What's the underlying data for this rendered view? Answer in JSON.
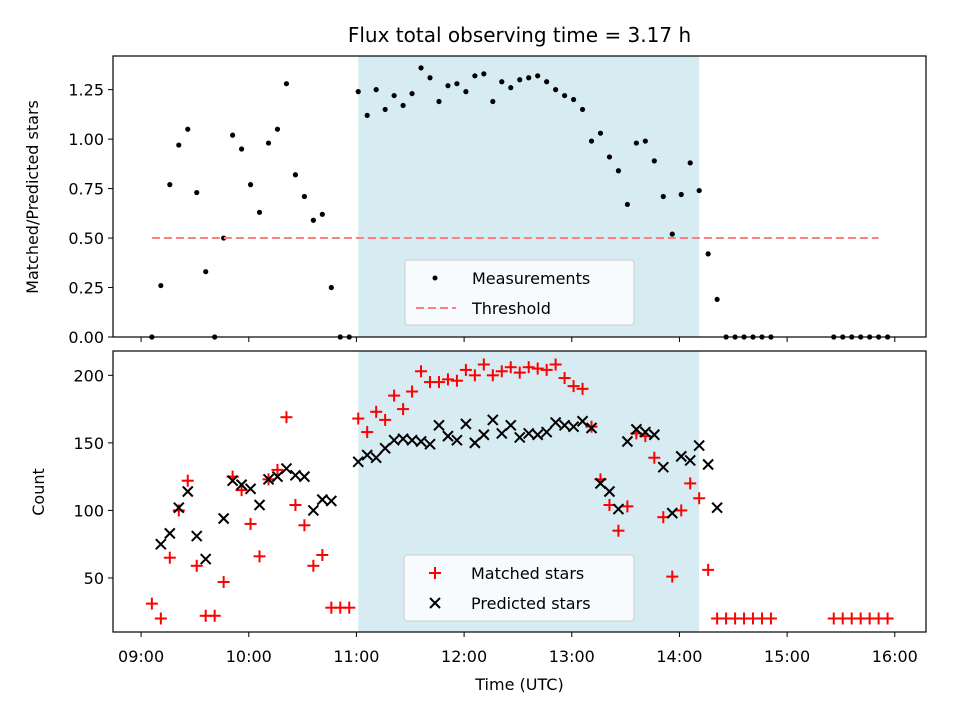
{
  "colors": {
    "measurements": "#000000",
    "threshold": "#ff7f7f",
    "matched": "#ff0000",
    "predicted": "#000000",
    "shade": "#add8e6"
  },
  "chart_data": [
    {
      "type": "scatter",
      "title": "Flux total observing time = 3.17 h",
      "xlabel": "",
      "ylabel": "Matched/Predicted stars",
      "xlim": [
        "09:00",
        "16:00"
      ],
      "ylim": [
        0,
        1.42
      ],
      "x_ticks": [
        "09:00",
        "10:00",
        "11:00",
        "12:00",
        "13:00",
        "14:00",
        "15:00",
        "16:00"
      ],
      "y_ticks": [
        "0.00",
        "0.25",
        "0.50",
        "0.75",
        "1.00",
        "1.25"
      ],
      "shaded_span": [
        "11:01",
        "14:11"
      ],
      "series": [
        {
          "name": "Measurements",
          "marker": "dot",
          "x": [
            "09:06",
            "09:11",
            "09:16",
            "09:21",
            "09:26",
            "09:31",
            "09:36",
            "09:41",
            "09:46",
            "09:51",
            "09:56",
            "10:01",
            "10:06",
            "10:11",
            "10:16",
            "10:21",
            "10:26",
            "10:31",
            "10:36",
            "10:41",
            "10:46",
            "10:51",
            "10:56",
            "11:01",
            "11:06",
            "11:11",
            "11:16",
            "11:21",
            "11:26",
            "11:31",
            "11:36",
            "11:41",
            "11:46",
            "11:51",
            "11:56",
            "12:01",
            "12:06",
            "12:11",
            "12:16",
            "12:21",
            "12:26",
            "12:31",
            "12:36",
            "12:41",
            "12:46",
            "12:51",
            "12:56",
            "13:01",
            "13:06",
            "13:11",
            "13:16",
            "13:21",
            "13:26",
            "13:31",
            "13:36",
            "13:41",
            "13:46",
            "13:51",
            "13:56",
            "14:01",
            "14:06",
            "14:11",
            "14:16",
            "14:21",
            "14:26",
            "14:31",
            "14:36",
            "14:41",
            "14:46",
            "14:51",
            "15:26",
            "15:31",
            "15:36",
            "15:41",
            "15:46",
            "15:51",
            "15:56"
          ],
          "y": [
            0.0,
            0.26,
            0.77,
            0.97,
            1.05,
            0.73,
            0.33,
            0.0,
            0.5,
            1.02,
            0.95,
            0.77,
            0.63,
            0.98,
            1.05,
            1.28,
            0.82,
            0.71,
            0.59,
            0.62,
            0.25,
            0.0,
            0.0,
            1.24,
            1.12,
            1.25,
            1.15,
            1.22,
            1.17,
            1.23,
            1.36,
            1.31,
            1.19,
            1.27,
            1.28,
            1.24,
            1.32,
            1.33,
            1.19,
            1.29,
            1.26,
            1.3,
            1.31,
            1.32,
            1.29,
            1.25,
            1.22,
            1.2,
            1.15,
            0.99,
            1.03,
            0.91,
            0.84,
            0.67,
            0.98,
            0.99,
            0.89,
            0.71,
            0.52,
            0.72,
            0.88,
            0.74,
            0.42,
            0.19,
            0.0,
            0.0,
            0.0,
            0.0,
            0.0,
            0.0,
            0.0,
            0.0,
            0.0,
            0.0,
            0.0,
            0.0,
            0.0
          ]
        },
        {
          "name": "Threshold",
          "marker": "dashed-line",
          "x": [
            "09:06",
            "15:51"
          ],
          "y": [
            0.5,
            0.5
          ]
        }
      ],
      "legend": "lower-center"
    },
    {
      "type": "scatter",
      "title": "",
      "xlabel": "Time (UTC)",
      "ylabel": "Count",
      "xlim": [
        "09:00",
        "16:00"
      ],
      "ylim": [
        10,
        218
      ],
      "x_ticks": [
        "09:00",
        "10:00",
        "11:00",
        "12:00",
        "13:00",
        "14:00",
        "15:00",
        "16:00"
      ],
      "y_ticks": [
        "50",
        "100",
        "150",
        "200"
      ],
      "shaded_span": [
        "11:01",
        "14:11"
      ],
      "series": [
        {
          "name": "Matched stars",
          "marker": "plus",
          "x": [
            "09:06",
            "09:11",
            "09:16",
            "09:21",
            "09:26",
            "09:31",
            "09:36",
            "09:41",
            "09:46",
            "09:51",
            "09:56",
            "10:01",
            "10:06",
            "10:11",
            "10:16",
            "10:21",
            "10:26",
            "10:31",
            "10:36",
            "10:41",
            "10:46",
            "10:51",
            "10:56",
            "11:01",
            "11:06",
            "11:11",
            "11:16",
            "11:21",
            "11:26",
            "11:31",
            "11:36",
            "11:41",
            "11:46",
            "11:51",
            "11:56",
            "12:01",
            "12:06",
            "12:11",
            "12:16",
            "12:21",
            "12:26",
            "12:31",
            "12:36",
            "12:41",
            "12:46",
            "12:51",
            "12:56",
            "13:01",
            "13:06",
            "13:11",
            "13:16",
            "13:21",
            "13:26",
            "13:31",
            "13:36",
            "13:41",
            "13:46",
            "13:51",
            "13:56",
            "14:01",
            "14:06",
            "14:11",
            "14:16",
            "14:21",
            "14:26",
            "14:31",
            "14:36",
            "14:41",
            "14:46",
            "14:51",
            "15:26",
            "15:31",
            "15:36",
            "15:41",
            "15:46",
            "15:51",
            "15:56"
          ],
          "y": [
            31,
            20,
            65,
            100,
            122,
            59,
            22,
            22,
            47,
            125,
            115,
            90,
            66,
            123,
            130,
            169,
            104,
            89,
            59,
            67,
            28,
            28,
            28,
            168,
            158,
            173,
            167,
            185,
            175,
            188,
            203,
            195,
            195,
            197,
            196,
            204,
            200,
            208,
            200,
            203,
            206,
            202,
            206,
            205,
            204,
            208,
            198,
            192,
            190,
            162,
            123,
            104,
            85,
            103,
            157,
            155,
            139,
            95,
            51,
            100,
            120,
            109,
            56,
            20,
            20,
            20,
            20,
            20,
            20,
            20,
            20,
            20,
            20,
            20,
            20,
            20,
            20
          ]
        },
        {
          "name": "Predicted stars",
          "marker": "x",
          "x": [
            "09:11",
            "09:16",
            "09:21",
            "09:26",
            "09:31",
            "09:36",
            "09:46",
            "09:51",
            "09:56",
            "10:01",
            "10:06",
            "10:11",
            "10:16",
            "10:21",
            "10:26",
            "10:31",
            "10:36",
            "10:41",
            "10:46",
            "11:01",
            "11:06",
            "11:11",
            "11:16",
            "11:21",
            "11:26",
            "11:31",
            "11:36",
            "11:41",
            "11:46",
            "11:51",
            "11:56",
            "12:01",
            "12:06",
            "12:11",
            "12:16",
            "12:21",
            "12:26",
            "12:31",
            "12:36",
            "12:41",
            "12:46",
            "12:51",
            "12:56",
            "13:01",
            "13:06",
            "13:11",
            "13:16",
            "13:21",
            "13:26",
            "13:31",
            "13:36",
            "13:41",
            "13:46",
            "13:51",
            "13:56",
            "14:01",
            "14:06",
            "14:11",
            "14:16",
            "14:21"
          ],
          "y": [
            75,
            83,
            102,
            114,
            81,
            64,
            94,
            122,
            119,
            116,
            104,
            123,
            125,
            131,
            126,
            125,
            100,
            108,
            107,
            136,
            141,
            139,
            146,
            152,
            153,
            152,
            151,
            149,
            163,
            155,
            152,
            164,
            150,
            156,
            167,
            157,
            163,
            154,
            157,
            156,
            158,
            165,
            163,
            162,
            166,
            161,
            120,
            114,
            101,
            151,
            160,
            158,
            156,
            132,
            98,
            140,
            137,
            148,
            134,
            102
          ]
        }
      ],
      "legend": "lower-center"
    }
  ]
}
